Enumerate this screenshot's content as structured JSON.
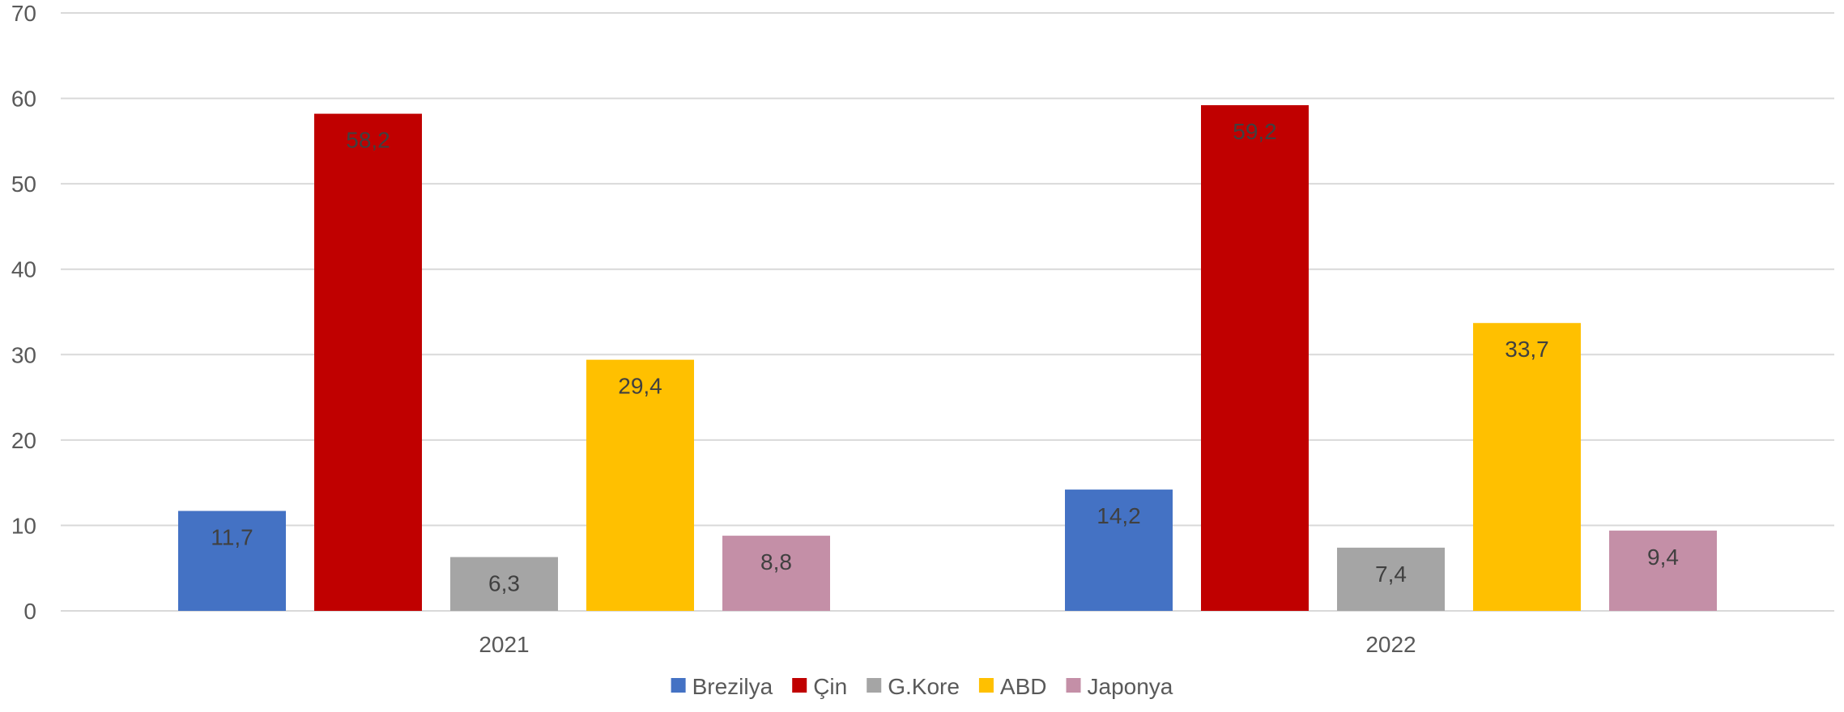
{
  "chart_data": {
    "type": "bar",
    "categories": [
      "2021",
      "2022"
    ],
    "series": [
      {
        "name": "Brezilya",
        "values": [
          11.7,
          14.2
        ],
        "labels": [
          "11,7",
          "14,2"
        ],
        "color": "#4472C4"
      },
      {
        "name": "Çin",
        "values": [
          58.2,
          59.2
        ],
        "labels": [
          "58,2",
          "59,2"
        ],
        "color": "#C00000"
      },
      {
        "name": "G.Kore",
        "values": [
          6.3,
          7.4
        ],
        "labels": [
          "6,3",
          "7,4"
        ],
        "color": "#A5A5A5"
      },
      {
        "name": "ABD",
        "values": [
          29.4,
          33.7
        ],
        "labels": [
          "29,4",
          "33,7"
        ],
        "color": "#FFC000"
      },
      {
        "name": "Japonya",
        "values": [
          8.8,
          9.4
        ],
        "labels": [
          "8,8",
          "9,4"
        ],
        "color": "#C48FA7"
      }
    ],
    "ylim": [
      0,
      70
    ],
    "yticks": [
      0,
      10,
      20,
      30,
      40,
      50,
      60,
      70
    ],
    "grid": true,
    "legend": "bottom"
  }
}
